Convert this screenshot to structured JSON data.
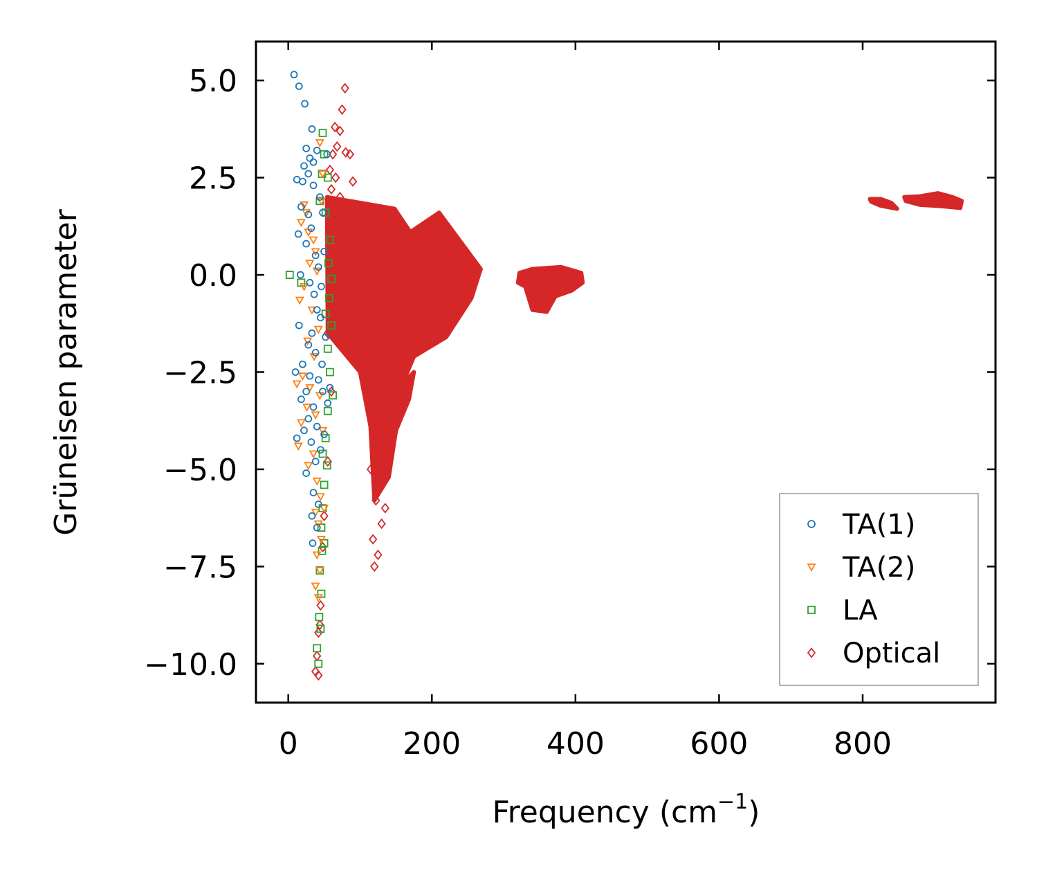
{
  "chart_data": {
    "type": "scatter",
    "title": "",
    "xlabel": "Frequency (cm",
    "xlabel_sup": "−1",
    "xlabel_end": ")",
    "ylabel": "Grüneisen parameter",
    "xlim": [
      -45,
      985
    ],
    "ylim": [
      -11.0,
      6.0
    ],
    "xticks": [
      0,
      200,
      400,
      600,
      800
    ],
    "xtick_labels": [
      "0",
      "200",
      "400",
      "600",
      "800"
    ],
    "yticks": [
      5.0,
      2.5,
      0.0,
      -2.5,
      -5.0,
      -7.5,
      -10.0
    ],
    "ytick_labels": [
      "5.0",
      "2.5",
      "0.0",
      "−2.5",
      "−5.0",
      "−7.5",
      "−10.0"
    ],
    "legend_position": "lower-right",
    "colors": {
      "ta1": "#1f77b4",
      "ta2": "#ff7f0e",
      "la": "#2ca02c",
      "optical": "#d62728"
    },
    "series": [
      {
        "name": "TA(1)",
        "marker": "circle",
        "color": "#1f77b4",
        "points": [
          [
            8,
            5.15
          ],
          [
            15,
            4.85
          ],
          [
            23,
            4.4
          ],
          [
            33,
            3.75
          ],
          [
            25,
            3.25
          ],
          [
            30,
            3.0
          ],
          [
            22,
            2.8
          ],
          [
            28,
            2.6
          ],
          [
            12,
            2.45
          ],
          [
            20,
            2.4
          ],
          [
            35,
            2.3
          ],
          [
            18,
            1.75
          ],
          [
            28,
            1.55
          ],
          [
            32,
            1.2
          ],
          [
            14,
            1.05
          ],
          [
            25,
            0.8
          ],
          [
            38,
            0.5
          ],
          [
            42,
            0.2
          ],
          [
            17,
            0.0
          ],
          [
            30,
            -0.2
          ],
          [
            36,
            -0.5
          ],
          [
            40,
            -0.9
          ],
          [
            15,
            -1.3
          ],
          [
            33,
            -1.5
          ],
          [
            45,
            -1.1
          ],
          [
            28,
            -1.8
          ],
          [
            38,
            -2.0
          ],
          [
            20,
            -2.3
          ],
          [
            10,
            -2.5
          ],
          [
            30,
            -2.6
          ],
          [
            42,
            -2.7
          ],
          [
            25,
            -3.0
          ],
          [
            18,
            -3.2
          ],
          [
            35,
            -3.4
          ],
          [
            48,
            -3.0
          ],
          [
            28,
            -3.7
          ],
          [
            40,
            -3.9
          ],
          [
            22,
            -4.0
          ],
          [
            12,
            -4.2
          ],
          [
            32,
            -4.3
          ],
          [
            45,
            -4.5
          ],
          [
            38,
            -4.8
          ],
          [
            25,
            -5.1
          ],
          [
            35,
            -5.6
          ],
          [
            42,
            -5.9
          ],
          [
            33,
            -6.2
          ],
          [
            40,
            -6.5
          ],
          [
            34,
            -6.9
          ],
          [
            44,
            2.0
          ],
          [
            40,
            3.2
          ],
          [
            35,
            2.9
          ],
          [
            48,
            1.6
          ],
          [
            50,
            0.6
          ],
          [
            46,
            -0.3
          ],
          [
            52,
            -1.6
          ],
          [
            47,
            -2.3
          ],
          [
            55,
            -3.3
          ],
          [
            50,
            -4.1
          ],
          [
            58,
            -2.9
          ],
          [
            54,
            3.1
          ]
        ]
      },
      {
        "name": "TA(2)",
        "marker": "triangle-down",
        "color": "#ff7f0e",
        "points": [
          [
            22,
            1.8
          ],
          [
            25,
            1.6
          ],
          [
            18,
            1.35
          ],
          [
            28,
            1.1
          ],
          [
            35,
            0.9
          ],
          [
            38,
            0.6
          ],
          [
            30,
            0.3
          ],
          [
            40,
            0.1
          ],
          [
            16,
            -0.65
          ],
          [
            22,
            -0.3
          ],
          [
            33,
            -0.9
          ],
          [
            42,
            -1.4
          ],
          [
            27,
            -1.7
          ],
          [
            36,
            -2.1
          ],
          [
            20,
            -2.6
          ],
          [
            12,
            -2.8
          ],
          [
            30,
            -2.9
          ],
          [
            44,
            -3.1
          ],
          [
            26,
            -3.4
          ],
          [
            38,
            -3.6
          ],
          [
            18,
            -3.8
          ],
          [
            48,
            -4.0
          ],
          [
            14,
            -4.4
          ],
          [
            35,
            -4.6
          ],
          [
            28,
            -4.9
          ],
          [
            40,
            -5.3
          ],
          [
            45,
            -5.7
          ],
          [
            38,
            -6.1
          ],
          [
            42,
            -6.4
          ],
          [
            46,
            -6.8
          ],
          [
            40,
            -7.2
          ],
          [
            44,
            -7.6
          ],
          [
            38,
            -8.0
          ],
          [
            42,
            -8.3
          ],
          [
            50,
            -6.0
          ],
          [
            48,
            2.6
          ],
          [
            44,
            3.4
          ],
          [
            46,
            1.9
          ]
        ]
      },
      {
        "name": "LA",
        "marker": "square",
        "color": "#2ca02c",
        "points": [
          [
            2,
            0.0
          ],
          [
            18,
            -0.2
          ],
          [
            48,
            3.65
          ],
          [
            50,
            3.1
          ],
          [
            47,
            2.6
          ],
          [
            55,
            2.5
          ],
          [
            44,
            1.9
          ],
          [
            52,
            1.6
          ],
          [
            58,
            0.9
          ],
          [
            56,
            0.3
          ],
          [
            60,
            -0.1
          ],
          [
            57,
            -0.6
          ],
          [
            52,
            -1.0
          ],
          [
            60,
            -1.3
          ],
          [
            55,
            -1.9
          ],
          [
            58,
            -2.5
          ],
          [
            62,
            -3.1
          ],
          [
            55,
            -3.5
          ],
          [
            52,
            -4.2
          ],
          [
            48,
            -4.6
          ],
          [
            54,
            -4.9
          ],
          [
            50,
            -5.4
          ],
          [
            48,
            -6.0
          ],
          [
            46,
            -6.5
          ],
          [
            50,
            -6.9
          ],
          [
            47,
            -7.1
          ],
          [
            44,
            -7.6
          ],
          [
            46,
            -8.2
          ],
          [
            43,
            -8.8
          ],
          [
            45,
            -9.1
          ],
          [
            40,
            -9.6
          ],
          [
            42,
            -10.0
          ]
        ]
      },
      {
        "name": "Optical",
        "marker": "diamond",
        "color": "#d62728",
        "points": [
          [
            79,
            4.8
          ],
          [
            75,
            4.25
          ],
          [
            65,
            3.8
          ],
          [
            72,
            3.7
          ],
          [
            68,
            3.3
          ],
          [
            62,
            3.1
          ],
          [
            80,
            3.15
          ],
          [
            86,
            3.1
          ],
          [
            58,
            2.7
          ],
          [
            66,
            2.5
          ],
          [
            90,
            2.4
          ],
          [
            60,
            2.2
          ],
          [
            72,
            2.0
          ],
          [
            85,
            1.8
          ],
          [
            62,
            0.3
          ],
          [
            55,
            -1.5
          ],
          [
            60,
            -3.0
          ],
          [
            55,
            -4.8
          ],
          [
            50,
            -6.2
          ],
          [
            48,
            -7.0
          ],
          [
            44,
            -9.0
          ],
          [
            42,
            -9.2
          ],
          [
            40,
            -9.8
          ],
          [
            38,
            -10.2
          ],
          [
            42,
            -10.3
          ],
          [
            45,
            -8.5
          ],
          [
            120,
            -7.5
          ],
          [
            125,
            -7.2
          ],
          [
            118,
            -6.8
          ],
          [
            130,
            -6.4
          ],
          [
            135,
            -6.0
          ],
          [
            122,
            -5.8
          ],
          [
            128,
            -5.4
          ],
          [
            115,
            -5.0
          ],
          [
            140,
            -4.5
          ]
        ],
        "clusters": [
          {
            "x": [
              54,
              148,
              170,
              210,
              268,
              255,
              220,
              175,
              150,
              125,
              100,
              82,
              55
            ],
            "y": [
              2.0,
              1.7,
              1.1,
              1.6,
              0.15,
              -0.6,
              -1.6,
              -2.1,
              -3.2,
              -4.9,
              -2.5,
              -2.1,
              -1.5
            ]
          },
          {
            "x": [
              130,
              150,
              160,
              175,
              168,
              150,
              140,
              120,
              112
            ],
            "y": [
              -1.0,
              -1.5,
              -2.8,
              -2.5,
              -3.2,
              -4.0,
              -5.2,
              -5.8,
              -3.0
            ]
          },
          {
            "x": [
              322,
              340,
              380,
              408,
              410,
              395,
              372,
              360,
              340,
              330,
              320
            ],
            "y": [
              0.05,
              0.15,
              0.2,
              0.05,
              -0.2,
              -0.4,
              -0.55,
              -0.95,
              -0.9,
              -0.3,
              -0.2
            ]
          },
          {
            "x": [
              810,
              825,
              840,
              848,
              842,
              825,
              812
            ],
            "y": [
              1.95,
              1.95,
              1.85,
              1.7,
              1.72,
              1.78,
              1.88
            ]
          },
          {
            "x": [
              858,
              880,
              905,
              925,
              938,
              936,
              920,
              900,
              880,
              860
            ],
            "y": [
              2.0,
              2.02,
              2.1,
              2.0,
              1.9,
              1.72,
              1.75,
              1.78,
              1.8,
              1.9
            ]
          }
        ]
      }
    ]
  }
}
